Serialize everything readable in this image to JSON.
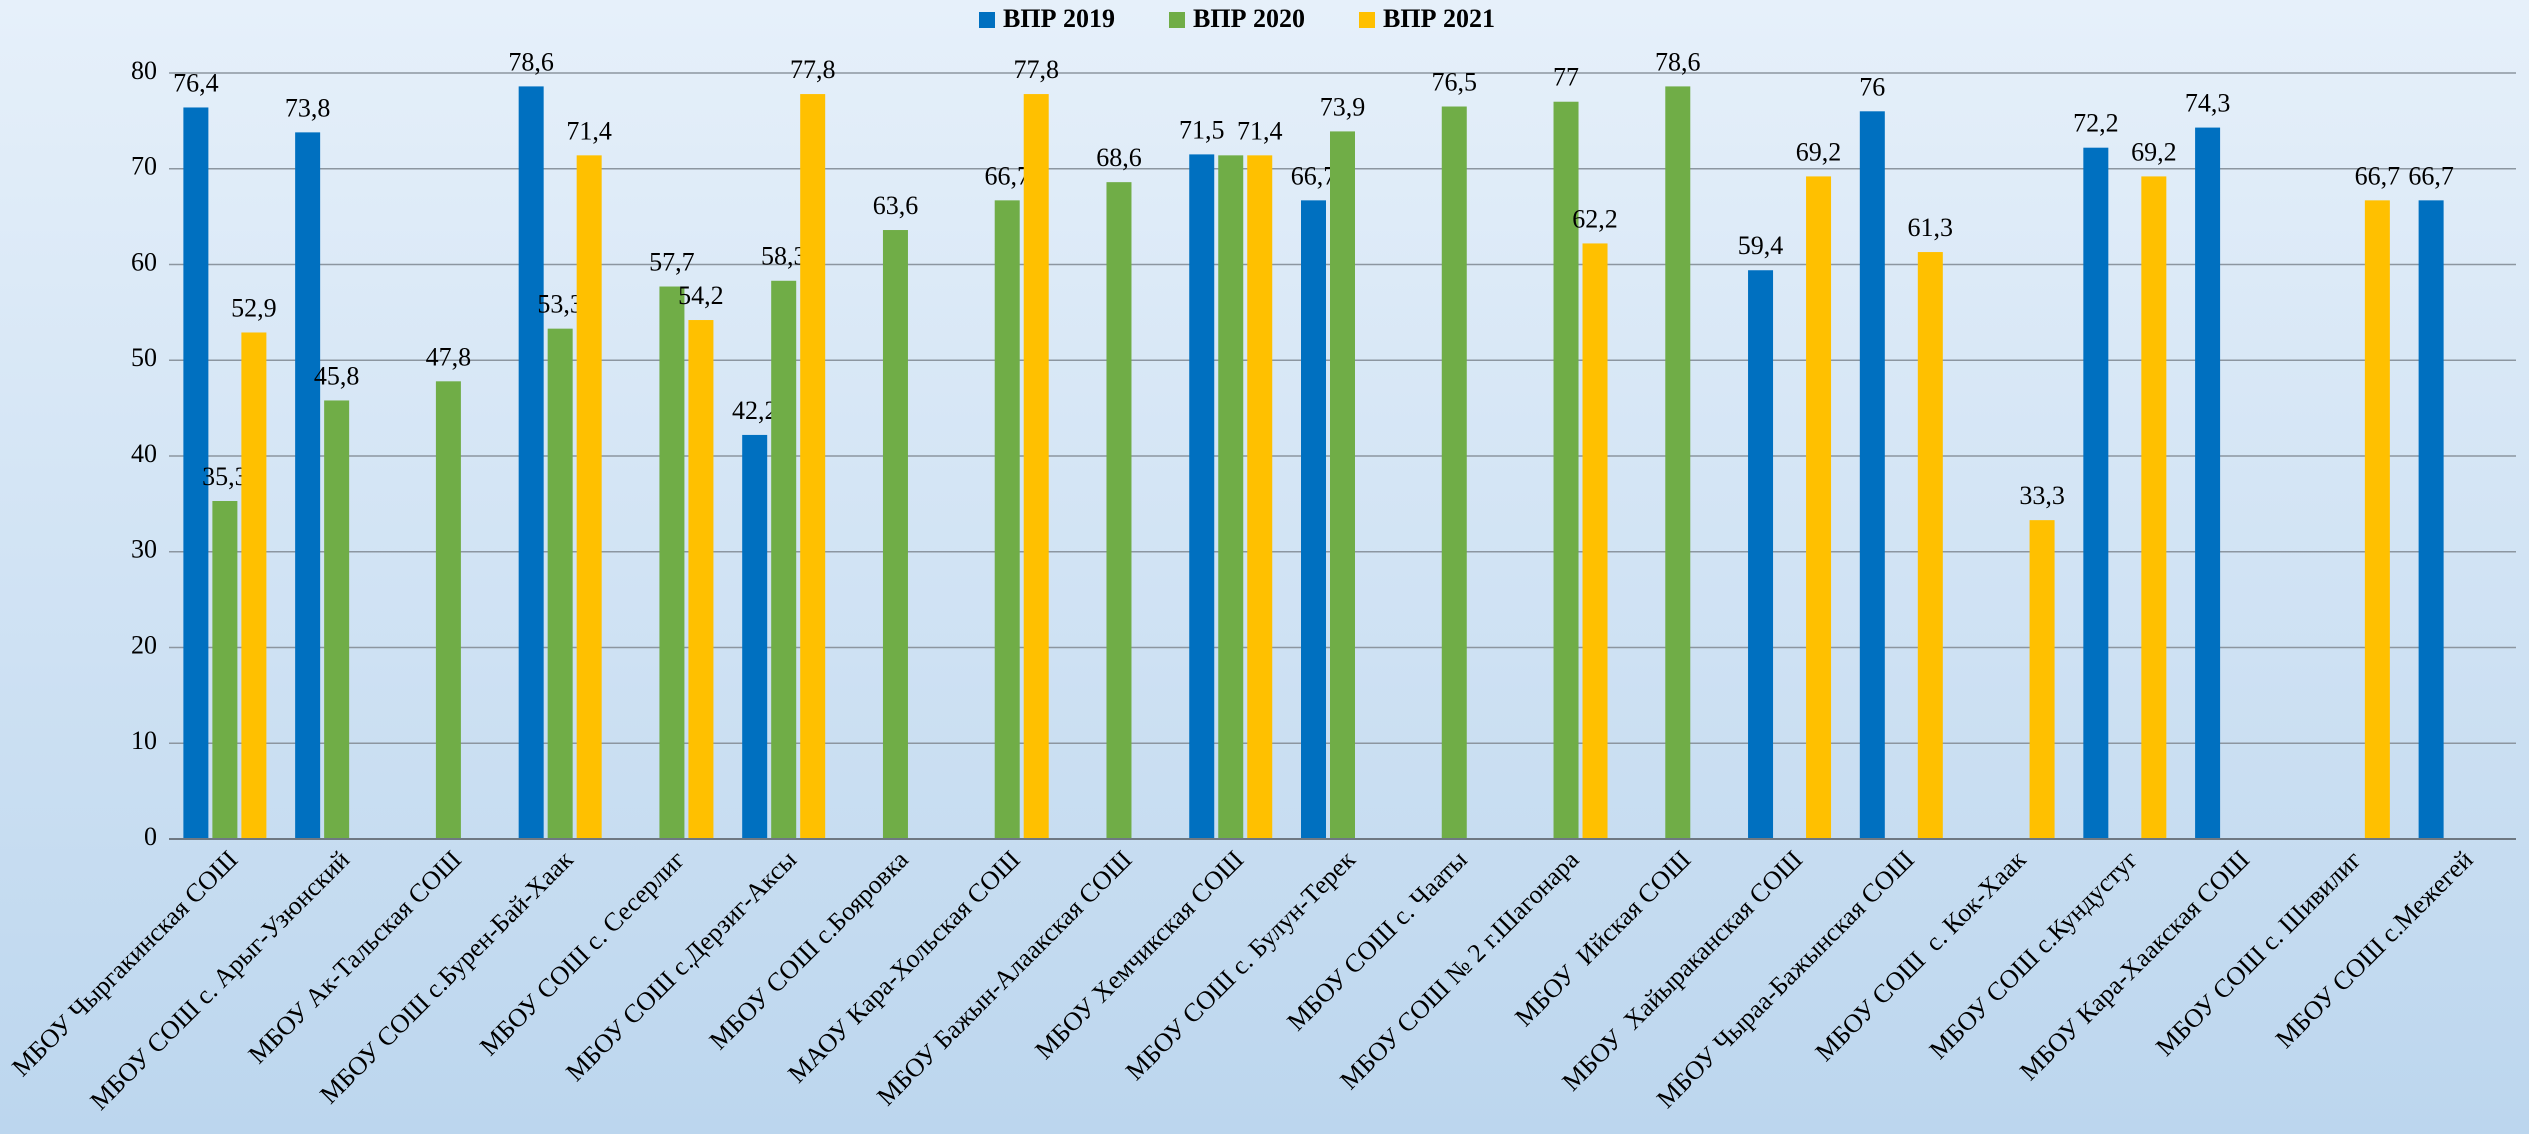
{
  "chart_data": {
    "type": "bar",
    "categories": [
      "МБОУ Чыргакинская СОШ",
      "МБОУ СОШ с. Арыг-Узюнский",
      "МБОУ Ак-Тальская СОШ",
      "МБОУ СОШ с.Бурен-Бай-Хаак",
      "МБОУ СОШ с. Сесерлиг",
      "МБОУ СОШ с.Дерзиг-Аксы",
      "МБОУ СОШ с.Бояровка",
      "МАОУ Кара-Хольская СОШ",
      "МБОУ Бажын-Алаакская СОШ",
      "МБОУ Хемчикская СОШ",
      "МБОУ СОШ с. Булун-Терек",
      "МБОУ СОШ с. Чааты",
      "МБОУ СОШ № 2 г.Шагонара",
      "МБОУ  Ийская СОШ",
      "МБОУ  Хайыраканская СОШ",
      "МБОУ Чыраа-Бажынская СОШ",
      "МБОУ СОШ  с. Кок-Хаак",
      "МБОУ СОШ с.Кундустуг",
      "МБОУ Кара-Хаакская СОШ",
      "МБОУ СОШ с. Шивилиг",
      "МБОУ СОШ с.Межегей"
    ],
    "series": [
      {
        "name": "ВПР 2019",
        "color": "#0070c0",
        "values": [
          76.4,
          73.8,
          null,
          78.6,
          null,
          42.2,
          null,
          null,
          null,
          71.5,
          66.7,
          null,
          null,
          null,
          59.4,
          76,
          null,
          72.2,
          74.3,
          null,
          66.7
        ],
        "value_labels": [
          "76,4",
          "73,8",
          null,
          "78,6",
          null,
          "42,2",
          null,
          null,
          null,
          "71,5",
          "66,7",
          null,
          null,
          null,
          "59,4",
          "76",
          null,
          "72,2",
          "74,3",
          null,
          "66,7"
        ]
      },
      {
        "name": "ВПР 2020",
        "color": "#70ad47",
        "values": [
          35.3,
          45.8,
          47.8,
          53.3,
          57.7,
          58.3,
          63.6,
          66.7,
          68.6,
          71.4,
          73.9,
          76.5,
          77,
          78.6,
          null,
          null,
          null,
          null,
          null,
          null,
          null
        ],
        "value_labels": [
          "35,3",
          "45,8",
          "47,8",
          "53,3",
          "57,7",
          "58,3",
          "63,6",
          "66,7",
          "68,6",
          null,
          "73,9",
          "76,5",
          "77",
          "78,6",
          null,
          null,
          null,
          null,
          null,
          null,
          null
        ]
      },
      {
        "name": "ВПР 2021",
        "color": "#ffc000",
        "values": [
          52.9,
          null,
          null,
          71.4,
          54.2,
          77.8,
          null,
          77.8,
          null,
          71.4,
          null,
          null,
          62.2,
          null,
          69.2,
          61.3,
          33.3,
          69.2,
          null,
          66.7,
          null
        ],
        "value_labels": [
          "52,9",
          null,
          null,
          "71,4",
          "54,2",
          "77,8",
          null,
          "77,8",
          null,
          "71,4",
          null,
          null,
          "62,2",
          null,
          "69,2",
          "61,3",
          "33,3",
          "69,2",
          null,
          "66,7",
          null
        ]
      }
    ],
    "ylim": [
      0,
      80
    ],
    "yticks": [
      0,
      10,
      20,
      30,
      40,
      50,
      60,
      70,
      80
    ],
    "grid": true,
    "legend": "top"
  }
}
